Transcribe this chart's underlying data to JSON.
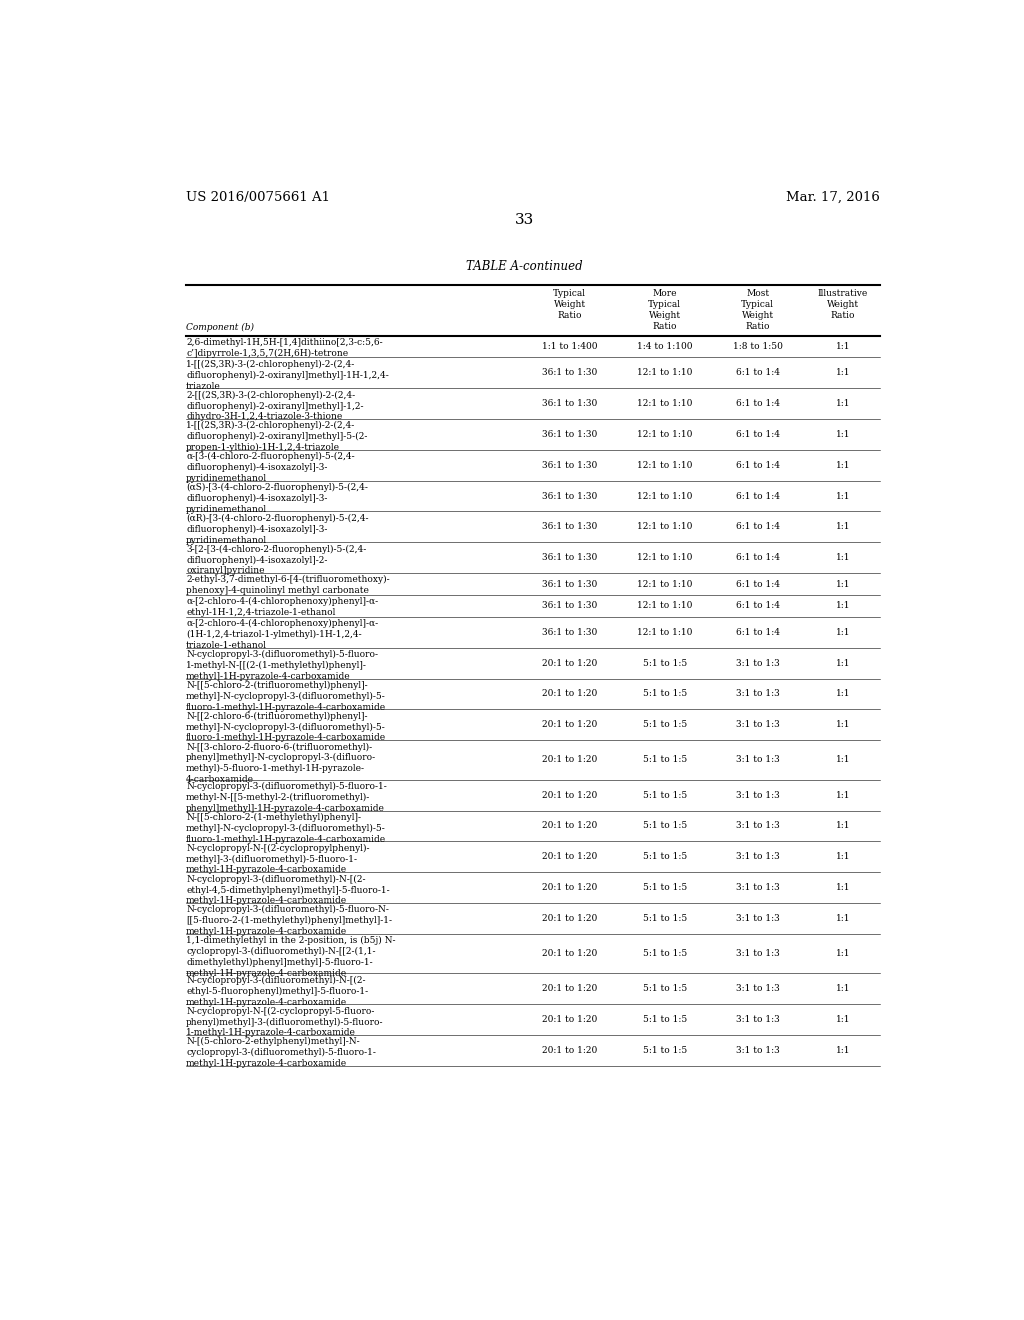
{
  "patent_number": "US 2016/0075661 A1",
  "date": "Mar. 17, 2016",
  "page_number": "33",
  "table_title": "TABLE A-continued",
  "col_headers": [
    "Component (b)",
    "Typical\nWeight\nRatio",
    "More\nTypical\nWeight\nRatio",
    "Most\nTypical\nWeight\nRatio",
    "Illustrative\nWeight\nRatio"
  ],
  "rows": [
    [
      "2,6-dimethyl-1H,5H-[1,4]dithiino[2,3-c:5,6-\nc’]dipyrrole-1,3,5,7(2H,6H)-tetrone",
      "1:1 to 1:400",
      "1:4 to 1:100",
      "1:8 to 1:50",
      "1:1"
    ],
    [
      "1-[[(2S,3R)-3-(2-chlorophenyl)-2-(2,4-\ndifluorophenyl)-2-oxiranyl]methyl]-1H-1,2,4-\ntriazole",
      "36:1 to 1:30",
      "12:1 to 1:10",
      "6:1 to 1:4",
      "1:1"
    ],
    [
      "2-[[(2S,3R)-3-(2-chlorophenyl)-2-(2,4-\ndifluorophenyl)-2-oxiranyl]methyl]-1,2-\ndihydro-3H-1,2,4-triazole-3-thione",
      "36:1 to 1:30",
      "12:1 to 1:10",
      "6:1 to 1:4",
      "1:1"
    ],
    [
      "1-[[(2S,3R)-3-(2-chlorophenyl)-2-(2,4-\ndifluorophenyl)-2-oxiranyl]methyl]-5-(2-\npropen-1-ylthio)-1H-1,2,4-triazole",
      "36:1 to 1:30",
      "12:1 to 1:10",
      "6:1 to 1:4",
      "1:1"
    ],
    [
      "α-[3-(4-chloro-2-fluorophenyl)-5-(2,4-\ndifluorophenyl)-4-isoxazolyl]-3-\npyridinemethanol",
      "36:1 to 1:30",
      "12:1 to 1:10",
      "6:1 to 1:4",
      "1:1"
    ],
    [
      "(αS)-[3-(4-chloro-2-fluorophenyl)-5-(2,4-\ndifluorophenyl)-4-isoxazolyl]-3-\npyridinemethanol",
      "36:1 to 1:30",
      "12:1 to 1:10",
      "6:1 to 1:4",
      "1:1"
    ],
    [
      "(αR)-[3-(4-chloro-2-fluorophenyl)-5-(2,4-\ndifluorophenyl)-4-isoxazolyl]-3-\npyridinemethanol",
      "36:1 to 1:30",
      "12:1 to 1:10",
      "6:1 to 1:4",
      "1:1"
    ],
    [
      "3-[2-[3-(4-chloro-2-fluorophenyl)-5-(2,4-\ndifluorophenyl)-4-isoxazolyl]-2-\noxiranyl]pyridine",
      "36:1 to 1:30",
      "12:1 to 1:10",
      "6:1 to 1:4",
      "1:1"
    ],
    [
      "2-ethyl-3,7-dimethyl-6-[4-(trifluoromethoxy)-\nphenoxy]-4-quinolinyl methyl carbonate",
      "36:1 to 1:30",
      "12:1 to 1:10",
      "6:1 to 1:4",
      "1:1"
    ],
    [
      "α-[2-chloro-4-(4-chlorophenoxy)phenyl]-α-\nethyl-1H-1,2,4-triazole-1-ethanol",
      "36:1 to 1:30",
      "12:1 to 1:10",
      "6:1 to 1:4",
      "1:1"
    ],
    [
      "α-[2-chloro-4-(4-chlorophenoxy)phenyl]-α-\n(1H-1,2,4-triazol-1-ylmethyl)-1H-1,2,4-\ntriazole-1-ethanol",
      "36:1 to 1:30",
      "12:1 to 1:10",
      "6:1 to 1:4",
      "1:1"
    ],
    [
      "N-cyclopropyl-3-(difluoromethyl)-5-fluoro-\n1-methyl-N-[[(2-(1-methylethyl)phenyl]-\nmethyl]-1H-pyrazole-4-carboxamide",
      "20:1 to 1:20",
      "5:1 to 1:5",
      "3:1 to 1:3",
      "1:1"
    ],
    [
      "N-[[5-chloro-2-(trifluoromethyl)phenyl]-\nmethyl]-N-cyclopropyl-3-(difluoromethyl)-5-\nfluoro-1-methyl-1H-pyrazole-4-carboxamide",
      "20:1 to 1:20",
      "5:1 to 1:5",
      "3:1 to 1:3",
      "1:1"
    ],
    [
      "N-[[2-chloro-6-(trifluoromethyl)phenyl]-\nmethyl]-N-cyclopropyl-3-(difluoromethyl)-5-\nfluoro-1-methyl-1H-pyrazole-4-carboxamide",
      "20:1 to 1:20",
      "5:1 to 1:5",
      "3:1 to 1:3",
      "1:1"
    ],
    [
      "N-[[3-chloro-2-fluoro-6-(trifluoromethyl)-\nphenyl]methyl]-N-cyclopropyl-3-(difluoro-\nmethyl)-5-fluoro-1-methyl-1H-pyrazole-\n4-carboxamide",
      "20:1 to 1:20",
      "5:1 to 1:5",
      "3:1 to 1:3",
      "1:1"
    ],
    [
      "N-cyclopropyl-3-(difluoromethyl)-5-fluoro-1-\nmethyl-N-[[5-methyl-2-(trifluoromethyl)-\nphenyl]methyl]-1H-pyrazole-4-carboxamide",
      "20:1 to 1:20",
      "5:1 to 1:5",
      "3:1 to 1:3",
      "1:1"
    ],
    [
      "N-[[5-chloro-2-(1-methylethyl)phenyl]-\nmethyl]-N-cyclopropyl-3-(difluoromethyl)-5-\nfluoro-1-methyl-1H-pyrazole-4-carboxamide",
      "20:1 to 1:20",
      "5:1 to 1:5",
      "3:1 to 1:3",
      "1:1"
    ],
    [
      "N-cyclopropyl-N-[(2-cyclopropylphenyl)-\nmethyl]-3-(difluoromethyl)-5-fluoro-1-\nmethyl-1H-pyrazole-4-carboxamide",
      "20:1 to 1:20",
      "5:1 to 1:5",
      "3:1 to 1:3",
      "1:1"
    ],
    [
      "N-cyclopropyl-3-(difluoromethyl)-N-[(2-\nethyl-4,5-dimethylphenyl)methyl]-5-fluoro-1-\nmethyl-1H-pyrazole-4-carboxamide",
      "20:1 to 1:20",
      "5:1 to 1:5",
      "3:1 to 1:3",
      "1:1"
    ],
    [
      "N-cyclopropyl-3-(difluoromethyl)-5-fluoro-N-\n[[5-fluoro-2-(1-methylethyl)phenyl]methyl]-1-\nmethyl-1H-pyrazole-4-carboxamide",
      "20:1 to 1:20",
      "5:1 to 1:5",
      "3:1 to 1:3",
      "1:1"
    ],
    [
      "1,1-dimethylethyl in the 2-position, is (b5j) N-\ncyclopropyl-3-(difluoromethyl)-N-[[2-(1,1-\ndimethylethyl)phenyl]methyl]-5-fluoro-1-\nmethyl-1H-pyrazole-4-carboxamide",
      "20:1 to 1:20",
      "5:1 to 1:5",
      "3:1 to 1:3",
      "1:1"
    ],
    [
      "N-cyclopropyl-3-(difluoromethyl)-N-[(2-\nethyl-5-fluorophenyl)methyl]-5-fluoro-1-\nmethyl-1H-pyrazole-4-carboxamide",
      "20:1 to 1:20",
      "5:1 to 1:5",
      "3:1 to 1:3",
      "1:1"
    ],
    [
      "N-cyclopropyl-N-[(2-cyclopropyl-5-fluoro-\nphenyl)methyl]-3-(difluoromethyl)-5-fluoro-\n1-methyl-1H-pyrazole-4-carboxamide",
      "20:1 to 1:20",
      "5:1 to 1:5",
      "3:1 to 1:3",
      "1:1"
    ],
    [
      "N-[(5-chloro-2-ethylphenyl)methyl]-N-\ncyclopropyl-3-(difluoromethyl)-5-fluoro-1-\nmethyl-1H-pyrazole-4-carboxamide",
      "20:1 to 1:20",
      "5:1 to 1:5",
      "3:1 to 1:3",
      "1:1"
    ]
  ],
  "background": "#ffffff",
  "text_color": "#000000",
  "font_size_body": 6.5,
  "font_size_header": 6.5,
  "font_size_title": 8.5,
  "font_size_patent": 9.5
}
